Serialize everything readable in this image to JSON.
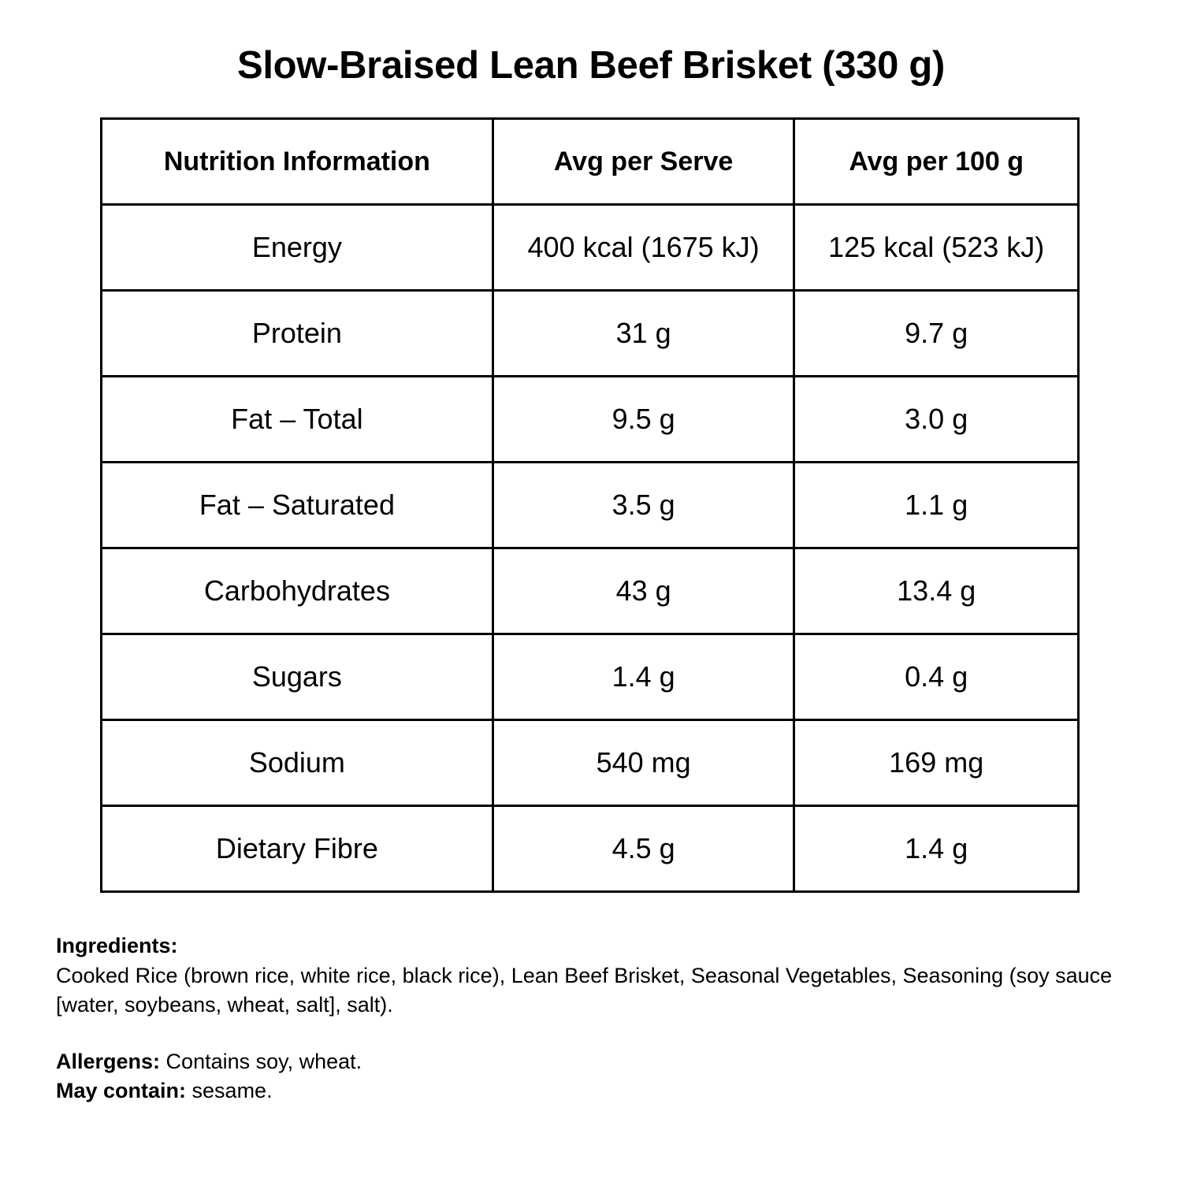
{
  "title": "Slow-Braised Lean Beef Brisket (330 g)",
  "table": {
    "headers": [
      "Nutrition Information",
      "Avg per Serve",
      "Avg per 100 g"
    ],
    "rows": [
      [
        "Energy",
        "400 kcal (1675 kJ)",
        "125 kcal (523 kJ)"
      ],
      [
        "Protein",
        "31 g",
        "9.7 g"
      ],
      [
        "Fat – Total",
        "9.5 g",
        "3.0 g"
      ],
      [
        "Fat – Saturated",
        "3.5 g",
        "1.1 g"
      ],
      [
        "Carbohydrates",
        "43 g",
        "13.4 g"
      ],
      [
        "Sugars",
        "1.4 g",
        "0.4 g"
      ],
      [
        "Sodium",
        "540 mg",
        "169 mg"
      ],
      [
        "Dietary Fibre",
        "4.5 g",
        "1.4 g"
      ]
    ]
  },
  "ingredients": {
    "label": "Ingredients:",
    "text": "Cooked Rice (brown rice, white rice, black rice), Lean Beef Brisket, Seasonal Vegetables, Seasoning (soy sauce [water, soybeans, wheat, salt], salt)."
  },
  "allergens": {
    "label": "Allergens:",
    "text": " Contains soy, wheat."
  },
  "may_contain": {
    "label": "May contain:",
    "text": " sesame."
  }
}
